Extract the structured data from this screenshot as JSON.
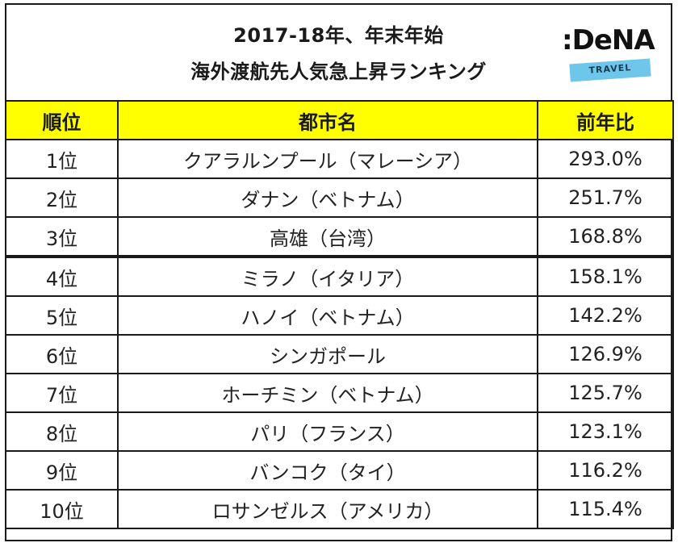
{
  "title": {
    "line1": "2017-18年、年末年始",
    "line2": "海外渡航先人気急上昇ランキング"
  },
  "logo": {
    "brand": ":DeNA",
    "sub": "TRAVEL",
    "band_color": "#6ec6ea"
  },
  "colors": {
    "header_bg": "#ffff00",
    "border": "#1a1a1a"
  },
  "table": {
    "headers": [
      "順位",
      "都市名",
      "前年比"
    ],
    "rows": [
      {
        "rank": "1位",
        "city": "クアラルンプール（マレーシア）",
        "ratio": "293.0%"
      },
      {
        "rank": "2位",
        "city": "ダナン（ベトナム）",
        "ratio": "251.7%"
      },
      {
        "rank": "3位",
        "city": "高雄（台湾）",
        "ratio": "168.8%"
      },
      {
        "rank": "4位",
        "city": "ミラノ（イタリア）",
        "ratio": "158.1%"
      },
      {
        "rank": "5位",
        "city": "ハノイ（ベトナム）",
        "ratio": "142.2%"
      },
      {
        "rank": "6位",
        "city": "シンガポール",
        "ratio": "126.9%"
      },
      {
        "rank": "7位",
        "city": "ホーチミン（ベトナム）",
        "ratio": "125.7%"
      },
      {
        "rank": "8位",
        "city": "パリ（フランス）",
        "ratio": "123.1%"
      },
      {
        "rank": "9位",
        "city": "バンコク（タイ）",
        "ratio": "116.2%"
      },
      {
        "rank": "10位",
        "city": "ロサンゼルス（アメリカ）",
        "ratio": "115.4%"
      }
    ]
  }
}
